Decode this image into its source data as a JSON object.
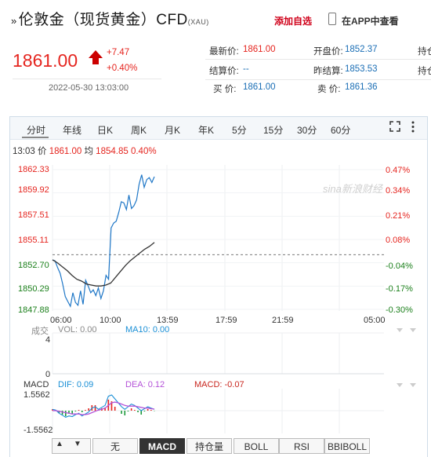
{
  "header": {
    "prefix": "»",
    "title": "伦敦金（现货黄金）CFD",
    "code": "(XAU)",
    "add_favorite": "添加自选",
    "view_in_app": "在APP中查看",
    "price": "1861.00",
    "change": "+7.47",
    "change_pct": "+0.40%",
    "datetime": "2022-05-30 13:03:00"
  },
  "quote": [
    {
      "label": "最新价:",
      "value": "1861.00",
      "color": "red"
    },
    {
      "label": "开盘价:",
      "value": "1852.37",
      "color": "blue"
    },
    {
      "label": "持仓",
      "value": "",
      "color": "none"
    },
    {
      "label": "结算价:",
      "value": "--",
      "color": "blue"
    },
    {
      "label": "昨结算:",
      "value": "1853.53",
      "color": "blue"
    },
    {
      "label": "持仓",
      "value": "",
      "color": "none"
    },
    {
      "label": "买   价:",
      "value": "1861.00",
      "color": "blue"
    },
    {
      "label": "卖   价:",
      "value": "1861.36",
      "color": "blue"
    }
  ],
  "tabs": [
    "分时",
    "年线",
    "日K",
    "周K",
    "月K",
    "年K",
    "5分",
    "15分",
    "30分",
    "60分"
  ],
  "info": {
    "time": "13:03",
    "price_label": "价",
    "price": "1861.00",
    "avg_label": "均",
    "avg": "1854.85",
    "pct": "0.40%"
  },
  "watermark": "sina新浪财经",
  "chart_data": {
    "type": "line",
    "y_ticks_left": [
      "1862.33",
      "1859.92",
      "1857.51",
      "1855.11",
      "1852.70",
      "1850.29",
      "1847.88"
    ],
    "y_ticks_right": [
      "0.47%",
      "0.34%",
      "0.21%",
      "0.08%",
      "-0.04%",
      "-0.17%",
      "-0.30%"
    ],
    "x_ticks": [
      "06:00",
      "10:00",
      "13:59",
      "17:59",
      "21:59",
      "05:00"
    ],
    "ylim": [
      1847.88,
      1862.33
    ],
    "reference": 1853.53,
    "series": [
      {
        "color": "#1f77c7",
        "values": [
          1853.0,
          1852.9,
          1852.2,
          1851.6,
          1850.5,
          1849.2,
          1848.7,
          1848.2,
          1849.6,
          1848.6,
          1848.3,
          1849.8,
          1848.4,
          1850.9,
          1850.3,
          1849.6,
          1849.9,
          1849.3,
          1850.1,
          1849.0,
          1849.8,
          1851.4,
          1851.0,
          1856.3,
          1856.8,
          1857.0,
          1857.9,
          1859.0,
          1858.9,
          1858.2,
          1859.7,
          1858.3,
          1858.6,
          1859.2,
          1860.8,
          1861.8,
          1860.5,
          1861.3,
          1861.5,
          1861.0,
          1861.6
        ]
      },
      {
        "color": "#333333",
        "values": [
          1853.0,
          1852.7,
          1852.3,
          1851.9,
          1851.4,
          1851.0,
          1850.8,
          1850.5,
          1850.4,
          1850.3,
          1850.3,
          1850.4,
          1850.6,
          1851.2,
          1851.8,
          1852.4,
          1852.9,
          1853.3,
          1853.7,
          1854.1,
          1854.4,
          1854.8
        ]
      }
    ]
  },
  "volume": {
    "label": "成交",
    "vol_text": "VOL: 0.00",
    "ma_text": "MA10: 0.00",
    "top": "4",
    "bottom": "0"
  },
  "macd": {
    "label": "MACD",
    "dif": "DIF: 0.09",
    "dea": "DEA: 0.12",
    "macd": "MACD: -0.07",
    "top": "1.5562",
    "bottom": "-1.5562",
    "dif_values": [
      0.1,
      0.05,
      -0.2,
      -0.35,
      -0.5,
      -0.4,
      -0.45,
      -0.3,
      -0.2,
      -0.4,
      -0.25,
      -0.1,
      0.2,
      0.3,
      0.1,
      0.25,
      0.4,
      1.1,
      1.2,
      0.9,
      0.6,
      0.3,
      0.1,
      0.3,
      0.5,
      0.4,
      0.2,
      0.0,
      0.15,
      0.3,
      0.2,
      0.1
    ],
    "dea_values": [
      0.0,
      0.0,
      -0.05,
      -0.1,
      -0.15,
      -0.2,
      -0.25,
      -0.25,
      -0.25,
      -0.3,
      -0.3,
      -0.25,
      -0.15,
      -0.05,
      0.05,
      0.1,
      0.2,
      0.4,
      0.6,
      0.65,
      0.6,
      0.5,
      0.4,
      0.35,
      0.35,
      0.35,
      0.3,
      0.25,
      0.2,
      0.2,
      0.15,
      0.12
    ]
  },
  "indicator_tabs": [
    "无",
    "MACD",
    "持仓量",
    "BOLL",
    "RSI",
    "BBIBOLL"
  ]
}
